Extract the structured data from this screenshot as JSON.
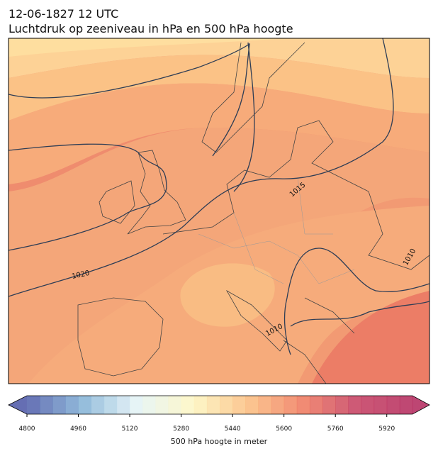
{
  "title": "12-06-1827 12 UTC",
  "subtitle": "Luchtdruk op zeeniveau in hPa en 500 hPa hoogte",
  "isobar_labels": [
    "1020",
    "1015",
    "1010",
    "1010"
  ],
  "colorbar": {
    "label": "500 hPa hoogte in meter",
    "lim": [
      4800,
      6000
    ],
    "ticks": [
      4800,
      4960,
      5120,
      5280,
      5440,
      5600,
      5760,
      5920
    ],
    "cmap": [
      "#4a55a6",
      "#7fb0d4",
      "#e4f3f6",
      "#fdf6c0",
      "#fbbe7e",
      "#f0785c",
      "#c43a5e",
      "#b2265a"
    ]
  }
}
